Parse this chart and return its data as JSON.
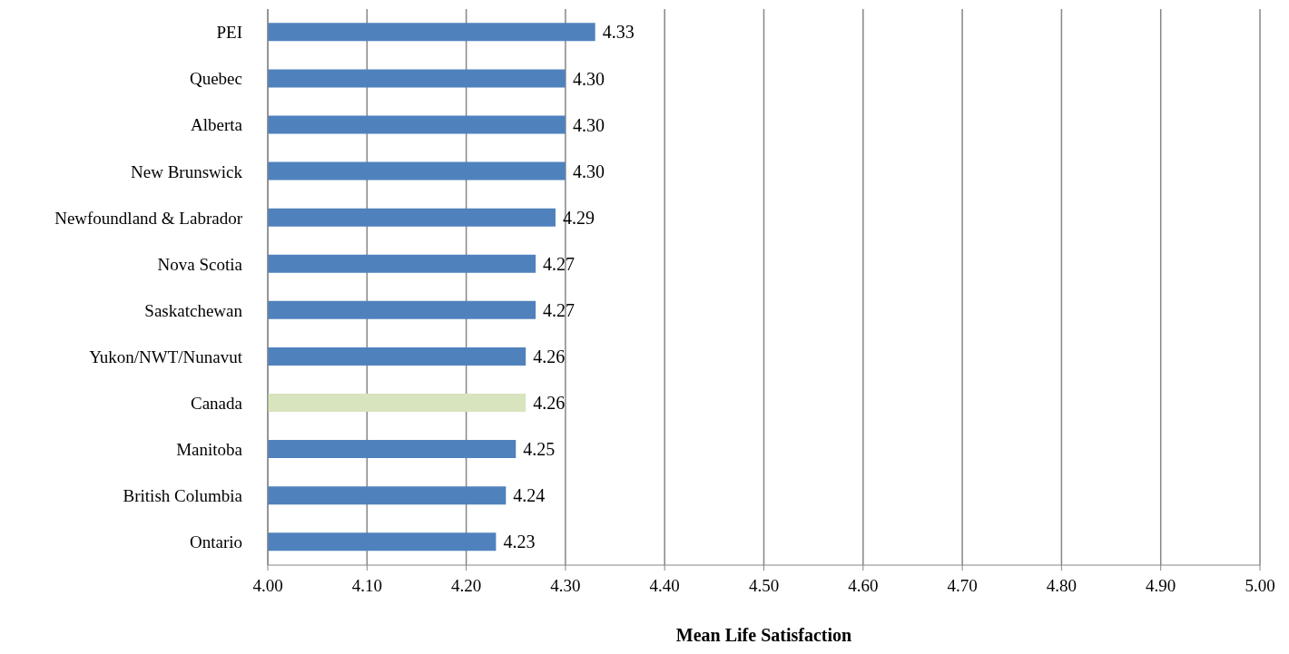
{
  "chart_data": {
    "type": "bar",
    "orientation": "horizontal",
    "xlabel": "Mean Life Satisfaction",
    "categories": [
      "PEI",
      "Quebec",
      "Alberta",
      "New Brunswick",
      "Newfoundland & Labrador",
      "Nova Scotia",
      "Saskatchewan",
      "Yukon/NWT/Nunavut",
      "Canada",
      "Manitoba",
      "British Columbia",
      "Ontario"
    ],
    "values": [
      4.33,
      4.3,
      4.3,
      4.3,
      4.29,
      4.27,
      4.27,
      4.26,
      4.26,
      4.25,
      4.24,
      4.23
    ],
    "value_labels": [
      "4.33",
      "4.30",
      "4.30",
      "4.30",
      "4.29",
      "4.27",
      "4.27",
      "4.26",
      "4.26",
      "4.25",
      "4.24",
      "4.23"
    ],
    "colors": [
      "#4f81bd",
      "#4f81bd",
      "#4f81bd",
      "#4f81bd",
      "#4f81bd",
      "#4f81bd",
      "#4f81bd",
      "#4f81bd",
      "#d7e4bd",
      "#4f81bd",
      "#4f81bd",
      "#4f81bd"
    ],
    "xlim": [
      4.0,
      5.0
    ],
    "xticks": [
      {
        "value": 4.0,
        "label": "4.00"
      },
      {
        "value": 4.1,
        "label": "4.10"
      },
      {
        "value": 4.2,
        "label": "4.20"
      },
      {
        "value": 4.3,
        "label": "4.30"
      },
      {
        "value": 4.4,
        "label": "4.40"
      },
      {
        "value": 4.5,
        "label": "4.50"
      },
      {
        "value": 4.6,
        "label": "4.60"
      },
      {
        "value": 4.7,
        "label": "4.70"
      },
      {
        "value": 4.8,
        "label": "4.80"
      },
      {
        "value": 4.9,
        "label": "4.90"
      },
      {
        "value": 5.0,
        "label": "5.00"
      }
    ],
    "grid": "x"
  }
}
